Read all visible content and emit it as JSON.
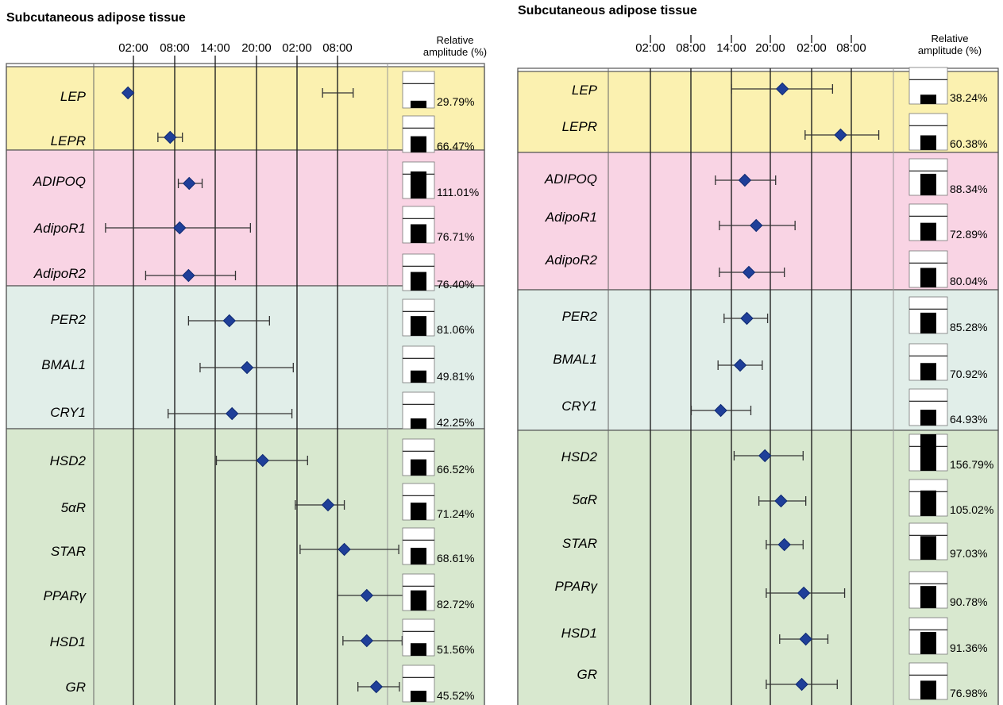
{
  "chart_data": [
    {
      "type": "scatter",
      "title": "Subcutaneous adipose tissue",
      "x_tick_labels": [
        "02:00",
        "08:00",
        "14:00",
        "20:00",
        "02:00",
        "08:00"
      ],
      "amplitude_header": [
        "Relative",
        "amplitude (%)"
      ],
      "xlabel": "",
      "ylabel": "",
      "groups": [
        {
          "color": "#fbf1b0",
          "genes": [
            {
              "name": "LEP",
              "peak": 1.2,
              "ci": [
                29.8,
                34.3
              ],
              "amp_label": "29.79%"
            },
            {
              "name": "LEPR",
              "peak": 7.4,
              "ci": [
                5.6,
                9.2
              ],
              "amp_label": "66.47%"
            }
          ]
        },
        {
          "color": "#f9d4e4",
          "genes": [
            {
              "name": "ADIPOQ",
              "peak": 10.2,
              "ci": [
                8.6,
                12.1
              ],
              "amp_label": "111.01%"
            },
            {
              "name": "AdipoR1",
              "peak": 8.8,
              "ci": [
                -2.1,
                19.2
              ],
              "amp_label": "76.71%"
            },
            {
              "name": "AdipoR2",
              "peak": 10.1,
              "ci": [
                3.8,
                17.0
              ],
              "amp_label": "76.40%"
            }
          ]
        },
        {
          "color": "#e1eee9",
          "genes": [
            {
              "name": "PER2",
              "peak": 16.1,
              "ci": [
                10.1,
                22.0
              ],
              "amp_label": "81.06%"
            },
            {
              "name": "BMAL1",
              "peak": 18.7,
              "ci": [
                11.8,
                25.5
              ],
              "amp_label": "49.81%"
            },
            {
              "name": "CRY1",
              "peak": 16.5,
              "ci": [
                7.1,
                25.3
              ],
              "amp_label": "42.25%"
            }
          ]
        },
        {
          "color": "#d8e8cf",
          "genes": [
            {
              "name": "HSD2",
              "peak": 21.0,
              "ci": [
                14.2,
                27.6
              ],
              "amp_label": "66.52%"
            },
            {
              "name": "5αR",
              "peak": 30.6,
              "ci": [
                25.8,
                33.0
              ],
              "amp_label": "71.24%"
            },
            {
              "name": "STAR",
              "peak": 33.0,
              "ci": [
                26.5,
                41.0
              ],
              "amp_label": "68.61%"
            },
            {
              "name": "PPARγ",
              "peak": 36.3,
              "ci": [
                32.0,
                42.1
              ],
              "amp_label": "82.72%"
            },
            {
              "name": "HSD1",
              "peak": 36.3,
              "ci": [
                32.8,
                41.5
              ],
              "amp_label": "51.56%"
            },
            {
              "name": "GR",
              "peak": 37.7,
              "ci": [
                35.0,
                41.1
              ],
              "amp_label": "45.52%"
            }
          ]
        }
      ],
      "amplitudes": [
        29.79,
        66.47,
        111.01,
        76.71,
        76.4,
        81.06,
        49.81,
        42.25,
        66.52,
        71.24,
        68.61,
        82.72,
        51.56,
        45.52
      ]
    },
    {
      "type": "scatter",
      "title": "Subcutaneous adipose tissue",
      "x_tick_labels": [
        "02:00",
        "08:00",
        "14:00",
        "20:00",
        "02:00",
        "08:00"
      ],
      "amplitude_header": [
        "Relative",
        "amplitude (%)"
      ],
      "xlabel": "",
      "ylabel": "",
      "groups": [
        {
          "color": "#fbf1b0",
          "genes": [
            {
              "name": "LEP",
              "peak": 21.7,
              "ci": [
                14.1,
                29.2
              ],
              "amp_label": "38.24%"
            },
            {
              "name": "LEPR",
              "peak": 30.4,
              "ci": [
                25.1,
                36.1
              ],
              "amp_label": "60.38%"
            }
          ]
        },
        {
          "color": "#f9d4e4",
          "genes": [
            {
              "name": "ADIPOQ",
              "peak": 16.1,
              "ci": [
                11.7,
                20.7
              ],
              "amp_label": "88.34%"
            },
            {
              "name": "AdipoR1",
              "peak": 17.8,
              "ci": [
                12.3,
                23.6
              ],
              "amp_label": "72.89%"
            },
            {
              "name": "AdipoR2",
              "peak": 16.7,
              "ci": [
                12.3,
                22.0
              ],
              "amp_label": "80.04%"
            }
          ]
        },
        {
          "color": "#e1eee9",
          "genes": [
            {
              "name": "PER2",
              "peak": 16.4,
              "ci": [
                13.0,
                19.5
              ],
              "amp_label": "85.28%"
            },
            {
              "name": "BMAL1",
              "peak": 15.4,
              "ci": [
                12.1,
                18.7
              ],
              "amp_label": "70.92%"
            },
            {
              "name": "CRY1",
              "peak": 12.5,
              "ci": [
                8.1,
                17.0
              ],
              "amp_label": "64.93%"
            }
          ]
        },
        {
          "color": "#d8e8cf",
          "genes": [
            {
              "name": "HSD2",
              "peak": 19.1,
              "ci": [
                14.5,
                24.8
              ],
              "amp_label": "156.79%"
            },
            {
              "name": "5αR",
              "peak": 21.5,
              "ci": [
                18.2,
                25.2
              ],
              "amp_label": "105.02%"
            },
            {
              "name": "STAR",
              "peak": 22.0,
              "ci": [
                19.3,
                24.8
              ],
              "amp_label": "97.03%"
            },
            {
              "name": "PPARγ",
              "peak": 24.9,
              "ci": [
                19.3,
                31.0
              ],
              "amp_label": "90.78%"
            },
            {
              "name": "HSD1",
              "peak": 25.2,
              "ci": [
                21.3,
                28.5
              ],
              "amp_label": "91.36%"
            },
            {
              "name": "GR",
              "peak": 24.6,
              "ci": [
                19.3,
                29.9
              ],
              "amp_label": "76.98%"
            }
          ]
        }
      ],
      "amplitudes": [
        38.24,
        60.38,
        88.34,
        72.89,
        80.04,
        85.28,
        70.92,
        64.93,
        156.79,
        105.02,
        97.03,
        90.78,
        91.36,
        76.98
      ]
    }
  ]
}
